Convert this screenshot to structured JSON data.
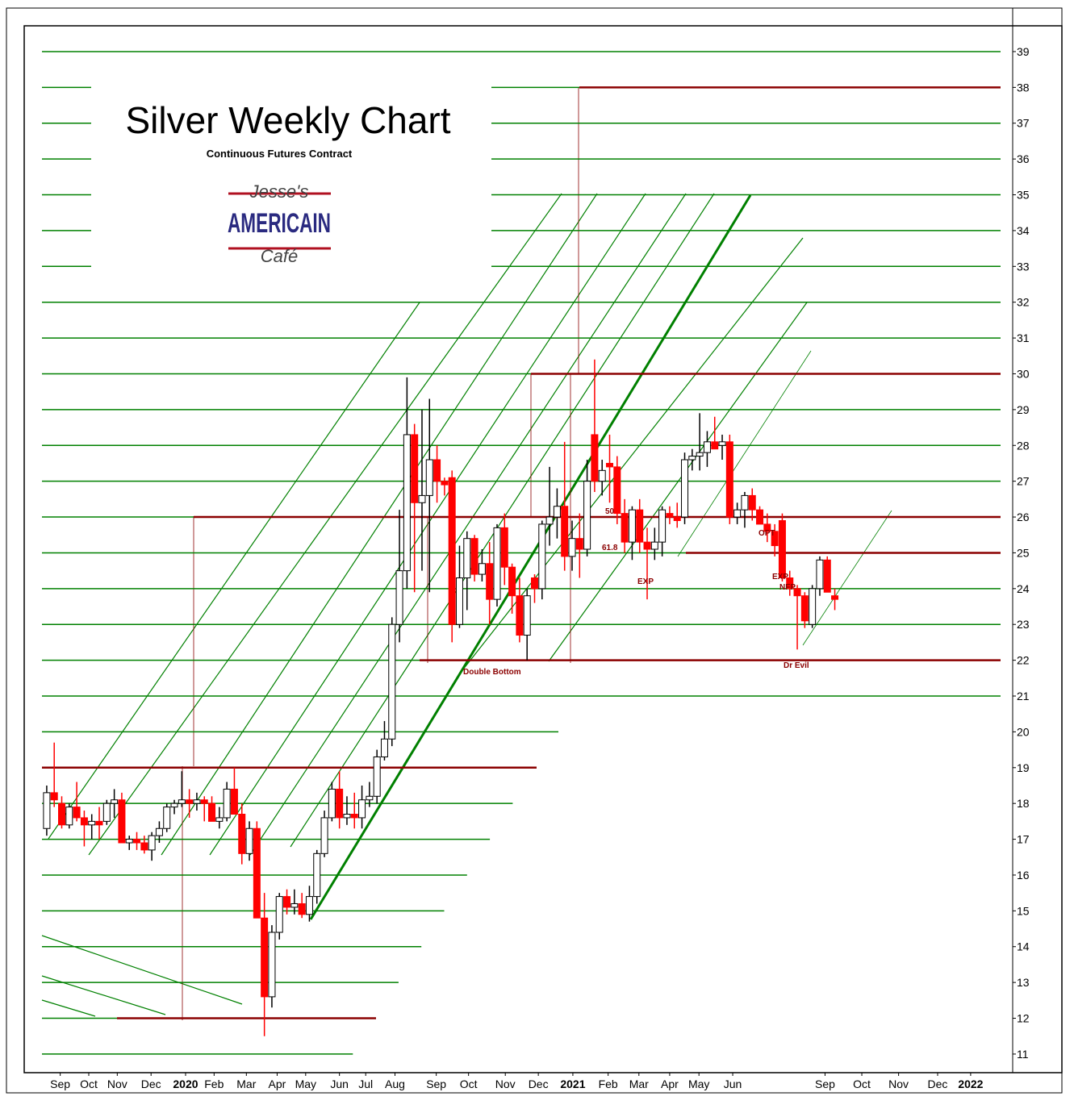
{
  "chart_data": {
    "type": "candlestick",
    "title": "Silver Weekly Chart",
    "subtitle": "Continuous Futures Contract",
    "logo": {
      "top": "Jesse's",
      "middle": "AMERICAIN",
      "bottom": "Café"
    },
    "annotations": [
      "50",
      "61.8",
      "EXP",
      "OPT",
      "EXP",
      "NFP",
      "Double Bottom",
      "Dr Evil"
    ],
    "up_color": "#ffffff",
    "down_color": "#ff0000",
    "grid_color": "#008000",
    "level_color": "#8b0000",
    "levels": [
      38,
      30,
      26,
      25,
      22,
      19,
      12
    ],
    "xlim": [
      -3,
      128.7
    ],
    "xticks": [
      {
        "value": 1.8,
        "label": "Sep"
      },
      {
        "value": 5.6,
        "label": "Oct"
      },
      {
        "value": 9.4,
        "label": "Nov"
      },
      {
        "value": 13.9,
        "label": "Dec"
      },
      {
        "value": 18.5,
        "label": "2020"
      },
      {
        "value": 22.3,
        "label": "Feb"
      },
      {
        "value": 26.6,
        "label": "Mar"
      },
      {
        "value": 30.7,
        "label": "Apr"
      },
      {
        "value": 34.5,
        "label": "May"
      },
      {
        "value": 39.0,
        "label": "Jun"
      },
      {
        "value": 42.5,
        "label": "Jul"
      },
      {
        "value": 46.4,
        "label": "Aug"
      },
      {
        "value": 51.9,
        "label": "Sep"
      },
      {
        "value": 56.2,
        "label": "Oct"
      },
      {
        "value": 61.1,
        "label": "Nov"
      },
      {
        "value": 65.5,
        "label": "Dec"
      },
      {
        "value": 70.1,
        "label": "2021"
      },
      {
        "value": 74.8,
        "label": "Feb"
      },
      {
        "value": 78.9,
        "label": "Mar"
      },
      {
        "value": 83.0,
        "label": "Apr"
      },
      {
        "value": 86.9,
        "label": "May"
      },
      {
        "value": 91.4,
        "label": "Jun"
      },
      {
        "value": 103.7,
        "label": "Sep"
      },
      {
        "value": 108.6,
        "label": "Oct"
      },
      {
        "value": 113.5,
        "label": "Nov"
      },
      {
        "value": 118.7,
        "label": "Dec"
      },
      {
        "value": 123.1,
        "label": "2022"
      }
    ],
    "ylim": [
      10.48,
      39.72
    ],
    "yticks": [
      11,
      12,
      13,
      14,
      15,
      16,
      17,
      18,
      19,
      20,
      21,
      22,
      23,
      24,
      25,
      26,
      27,
      28,
      29,
      30,
      31,
      32,
      33,
      34,
      35,
      36,
      37,
      38,
      39
    ],
    "x": [
      0,
      1,
      2,
      3,
      4,
      5,
      6,
      7,
      8,
      9,
      10,
      11,
      12,
      13,
      14,
      15,
      16,
      17,
      18,
      19,
      20,
      21,
      22,
      23,
      24,
      25,
      26,
      27,
      28,
      29,
      30,
      31,
      32,
      33,
      34,
      35,
      36,
      37,
      38,
      39,
      40,
      41,
      42,
      43,
      44,
      45,
      46,
      47,
      48,
      49,
      50,
      51,
      52,
      53,
      54,
      55,
      56,
      57,
      58,
      59,
      60,
      61,
      62,
      63,
      64,
      65,
      66,
      67,
      68,
      69,
      70,
      71,
      72,
      73,
      74,
      75,
      76,
      77,
      78,
      79,
      80,
      81,
      82,
      83,
      84,
      85,
      86,
      87,
      88,
      89,
      90,
      91,
      92,
      93,
      94,
      95,
      96,
      97,
      98,
      99,
      100,
      101,
      102,
      103,
      104,
      105
    ],
    "open": [
      17.3,
      18.3,
      18.0,
      17.4,
      17.9,
      17.6,
      17.4,
      17.5,
      17.5,
      18.0,
      18.1,
      16.9,
      17.0,
      16.9,
      16.7,
      17.1,
      17.3,
      17.9,
      18.0,
      18.1,
      18.0,
      18.1,
      18.0,
      17.5,
      17.6,
      18.4,
      17.7,
      16.6,
      17.3,
      14.8,
      12.6,
      14.4,
      15.4,
      15.1,
      15.2,
      14.9,
      15.4,
      16.6,
      17.6,
      18.4,
      17.6,
      17.7,
      17.6,
      18.1,
      18.2,
      19.3,
      19.8,
      23.0,
      24.5,
      28.3,
      26.4,
      26.6,
      27.6,
      27.0,
      27.1,
      23.0,
      24.3,
      25.4,
      24.4,
      24.7,
      23.7,
      25.7,
      24.6,
      23.8,
      22.7,
      24.3,
      24.0,
      25.8,
      26.0,
      26.3,
      24.9,
      25.4,
      25.1,
      28.3,
      27.0,
      27.5,
      27.4,
      26.1,
      25.3,
      26.2,
      25.3,
      25.1,
      25.3,
      26.1,
      26.0,
      26.0,
      27.6,
      27.7,
      27.8,
      28.1,
      28.0,
      28.1,
      26.0,
      26.2,
      26.6,
      26.2,
      25.8,
      25.6,
      25.9,
      24.3,
      24.0,
      23.8,
      23.0,
      24.0,
      24.8,
      23.8
    ],
    "high": [
      18.5,
      19.7,
      18.2,
      18.0,
      18.6,
      17.8,
      17.7,
      17.9,
      18.1,
      18.4,
      18.3,
      17.1,
      17.2,
      17.1,
      17.2,
      17.5,
      18.0,
      18.1,
      18.9,
      18.4,
      18.3,
      18.2,
      18.2,
      17.9,
      18.6,
      19.0,
      18.0,
      17.5,
      17.5,
      15.5,
      14.6,
      15.5,
      15.6,
      15.6,
      15.5,
      15.7,
      16.7,
      17.8,
      18.6,
      18.9,
      18.2,
      18.3,
      18.5,
      18.6,
      19.5,
      20.3,
      23.2,
      26.2,
      29.9,
      28.6,
      29.0,
      29.3,
      28.0,
      27.1,
      27.3,
      25.2,
      25.6,
      25.5,
      25.1,
      25.3,
      25.8,
      26.1,
      24.7,
      24.3,
      24.0,
      24.4,
      25.9,
      27.4,
      26.8,
      28.1,
      25.9,
      26.1,
      27.6,
      30.4,
      27.6,
      28.3,
      27.7,
      26.5,
      26.3,
      26.5,
      25.7,
      25.7,
      26.3,
      26.3,
      26.4,
      27.8,
      27.9,
      28.9,
      28.4,
      28.8,
      28.3,
      28.3,
      26.4,
      26.7,
      26.8,
      26.3,
      26.1,
      25.8,
      26.1,
      24.5,
      24.1,
      23.9,
      24.1,
      24.9,
      24.9,
      24.0
    ],
    "low": [
      17.1,
      17.9,
      17.3,
      17.3,
      17.5,
      16.8,
      17.0,
      17.0,
      17.4,
      17.6,
      16.9,
      16.7,
      16.7,
      16.6,
      16.4,
      16.9,
      17.2,
      17.7,
      17.9,
      17.6,
      17.8,
      17.5,
      17.5,
      17.3,
      17.5,
      17.8,
      16.3,
      16.4,
      14.8,
      11.5,
      12.3,
      14.2,
      14.9,
      14.9,
      14.8,
      14.7,
      15.2,
      16.5,
      17.5,
      17.3,
      17.4,
      17.3,
      17.3,
      17.9,
      18.0,
      19.2,
      19.6,
      22.5,
      24.0,
      23.9,
      24.5,
      23.9,
      26.4,
      26.6,
      22.5,
      22.9,
      23.4,
      24.2,
      24.2,
      23.0,
      23.5,
      24.1,
      23.3,
      22.5,
      22.0,
      23.6,
      23.7,
      25.2,
      25.4,
      24.5,
      24.5,
      24.3,
      24.9,
      26.7,
      26.6,
      26.4,
      25.8,
      25.0,
      24.8,
      25.0,
      23.7,
      24.8,
      24.9,
      25.8,
      25.7,
      25.8,
      27.3,
      27.3,
      27.4,
      27.9,
      27.6,
      25.8,
      25.8,
      25.7,
      25.9,
      25.8,
      25.3,
      24.9,
      24.2,
      23.8,
      22.3,
      22.9,
      22.9,
      23.8,
      23.9,
      23.4
    ],
    "close": [
      18.3,
      18.1,
      17.4,
      17.9,
      17.6,
      17.4,
      17.5,
      17.4,
      18.0,
      18.1,
      16.9,
      17.0,
      16.9,
      16.7,
      17.1,
      17.3,
      17.9,
      18.0,
      18.1,
      18.0,
      18.1,
      18.0,
      17.5,
      17.6,
      18.4,
      17.7,
      16.6,
      17.3,
      14.8,
      12.6,
      14.4,
      15.4,
      15.1,
      15.2,
      14.9,
      15.4,
      16.6,
      17.6,
      18.4,
      17.6,
      17.7,
      17.6,
      18.1,
      18.2,
      19.3,
      19.8,
      23.0,
      24.5,
      28.3,
      26.4,
      26.6,
      27.6,
      27.0,
      26.9,
      23.0,
      24.3,
      25.4,
      24.4,
      24.7,
      23.7,
      25.7,
      24.6,
      23.8,
      22.7,
      23.8,
      24.0,
      25.8,
      26.0,
      26.3,
      24.9,
      25.4,
      25.1,
      27.0,
      27.0,
      27.3,
      27.4,
      26.1,
      25.3,
      26.2,
      25.3,
      25.1,
      25.3,
      26.2,
      26.0,
      25.9,
      27.6,
      27.7,
      27.8,
      28.1,
      27.9,
      28.1,
      26.0,
      26.2,
      26.6,
      26.2,
      25.8,
      25.6,
      25.2,
      24.3,
      24.0,
      23.8,
      23.1,
      24.0,
      24.8,
      23.9,
      23.7
    ]
  }
}
